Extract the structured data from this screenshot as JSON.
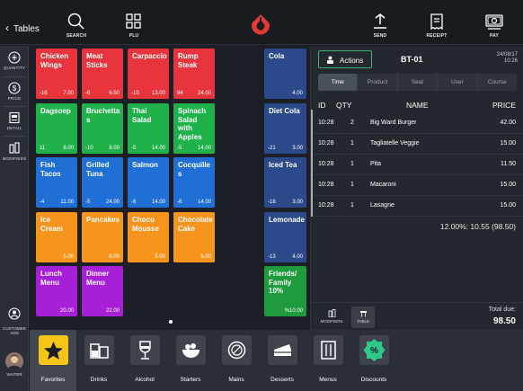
{
  "topbar": {
    "back_label": "Tables",
    "search_label": "SEARCH",
    "plu_label": "PLU",
    "send_label": "SEND",
    "receipt_label": "RECEIPT",
    "pay_label": "PAY",
    "brand_color": "#e53935"
  },
  "left_tools": {
    "quantity": "QUANTITY",
    "price": "PRICE",
    "detail": "DETAIL",
    "modifiers": "MODIFIERS",
    "customer_add": "CUSTOMER ADD",
    "waiter": "WAITER"
  },
  "products": [
    {
      "name": "Chicken Wings",
      "count": "-16",
      "price": "7.00",
      "color": "#e8343c"
    },
    {
      "name": "Meat Sticks",
      "count": "-6",
      "price": "6.50",
      "color": "#e8343c"
    },
    {
      "name": "Carpaccio",
      "count": "-10",
      "price": "13.00",
      "color": "#e8343c"
    },
    {
      "name": "Rump Steak",
      "count": "94",
      "price": "24.00",
      "color": "#e8343c"
    },
    {
      "name": "Dagsoep",
      "count": "11",
      "price": "8.00",
      "color": "#1fb24a"
    },
    {
      "name": "Bruchetta s",
      "count": "-10",
      "price": "8.00",
      "color": "#1fb24a"
    },
    {
      "name": "Thai Salad",
      "count": "-5",
      "price": "14.00",
      "color": "#1fb24a"
    },
    {
      "name": "Spinach Salad with Apples",
      "count": "-5",
      "price": "14.00",
      "color": "#1fb24a"
    },
    {
      "name": "Fish Tacos",
      "count": "-4",
      "price": "11.00",
      "color": "#1f6fd6"
    },
    {
      "name": "Grilled Tuna",
      "count": "-5",
      "price": "24.00",
      "color": "#1f6fd6"
    },
    {
      "name": "Salmon",
      "count": "-6",
      "price": "14.00",
      "color": "#1f6fd6"
    },
    {
      "name": "Cocquille s",
      "count": "-8",
      "price": "14.00",
      "color": "#1f6fd6"
    },
    {
      "name": "Ice Cream",
      "count": "",
      "price": "5.00",
      "color": "#f7941d"
    },
    {
      "name": "Pancakes",
      "count": "",
      "price": "6.00",
      "color": "#f7941d"
    },
    {
      "name": "Choco Mousse",
      "count": "",
      "price": "5.00",
      "color": "#f7941d"
    },
    {
      "name": "Chocolate Cake",
      "count": "",
      "price": "6.00",
      "color": "#f7941d"
    },
    {
      "name": "Lunch Menu",
      "count": "",
      "price": "20.00",
      "color": "#a71fd6"
    },
    {
      "name": "Dinner Menu",
      "count": "",
      "price": "22.00",
      "color": "#a71fd6"
    }
  ],
  "drinks_column": [
    {
      "name": "Cola",
      "count": "",
      "price": "4.00",
      "color": "#2c4a8a"
    },
    {
      "name": "Diet Cola",
      "count": "-21",
      "price": "3.00",
      "color": "#2c4a8a"
    },
    {
      "name": "Iced Tea",
      "count": "-18",
      "price": "3.00",
      "color": "#2c4a8a"
    },
    {
      "name": "Lemonade",
      "count": "-13",
      "price": "4.00",
      "color": "#2c4a8a"
    },
    {
      "name": "Friends/ Family 10%",
      "count": "",
      "price": "%10.00",
      "color": "#1f9a3c"
    }
  ],
  "order": {
    "actions_label": "Actions",
    "table": "BT-01",
    "date": "24/08/17",
    "time": "10:26",
    "tabs": [
      "Time",
      "Product",
      "Seat",
      "User",
      "Course"
    ],
    "active_tab": "Time",
    "columns": {
      "id": "ID",
      "qty": "QTY",
      "name": "NAME",
      "price": "PRICE"
    },
    "lines": [
      {
        "id": "10:28",
        "qty": "2",
        "name": "Big Ward Burger",
        "price": "42.00"
      },
      {
        "id": "10:28",
        "qty": "1",
        "name": "Tagliatelle Veggie",
        "price": "15.00"
      },
      {
        "id": "10:28",
        "qty": "1",
        "name": "Pita",
        "price": "11.50"
      },
      {
        "id": "10:28",
        "qty": "1",
        "name": "Macaroni",
        "price": "15.00"
      },
      {
        "id": "10:28",
        "qty": "1",
        "name": "Lasagne",
        "price": "15.00"
      }
    ],
    "summary": "12.00%: 10.55 (98.50)",
    "modifiers_label": "MODIFIERS",
    "table_label": "TABLE",
    "total_label": "Total due:",
    "total_value": "98.50"
  },
  "categories": [
    {
      "label": "Favorites",
      "icon": "star-icon"
    },
    {
      "label": "Drinks",
      "icon": "glasses-icon"
    },
    {
      "label": "Alcohol",
      "icon": "wine-glass-icon"
    },
    {
      "label": "Starters",
      "icon": "salad-bowl-icon"
    },
    {
      "label": "Mains",
      "icon": "plate-icon"
    },
    {
      "label": "Desserts",
      "icon": "cake-slice-icon"
    },
    {
      "label": "Menus",
      "icon": "menu-card-icon"
    },
    {
      "label": "Discounts",
      "icon": "discount-badge-icon"
    }
  ]
}
